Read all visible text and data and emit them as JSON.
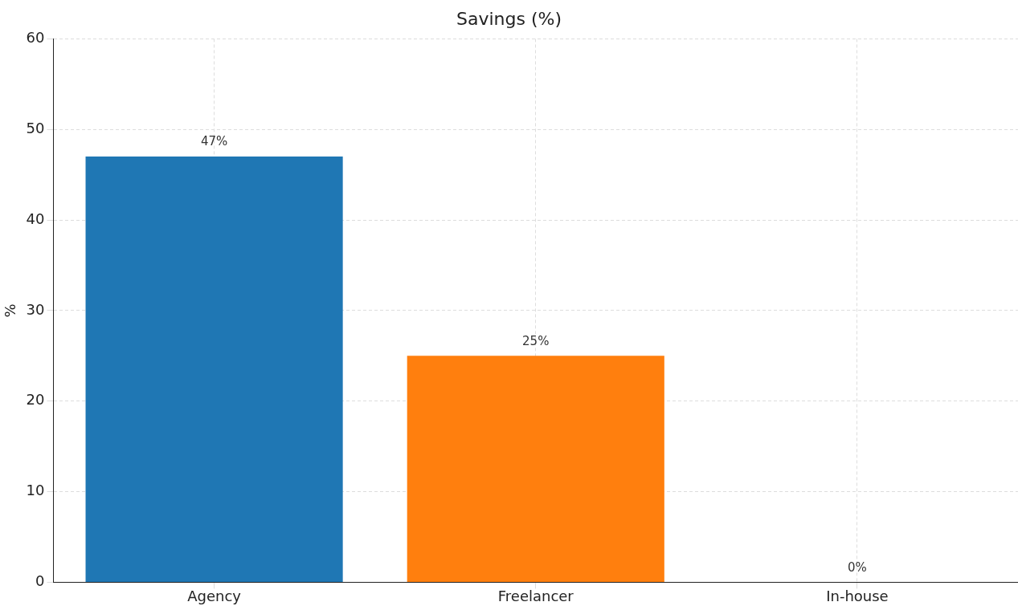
{
  "chart_data": {
    "type": "bar",
    "title": "Savings (%)",
    "ylabel": "%",
    "categories": [
      "Agency",
      "Freelancer",
      "In-house"
    ],
    "values": [
      47,
      25,
      0
    ],
    "colors": [
      "#1f77b4",
      "#ff7f0e",
      "#2ca02c"
    ],
    "value_labels": [
      "47%",
      "25%",
      "0%"
    ],
    "ylim": [
      0,
      60
    ],
    "yticks": [
      0,
      10,
      20,
      30,
      40,
      50,
      60
    ],
    "grid": true
  }
}
